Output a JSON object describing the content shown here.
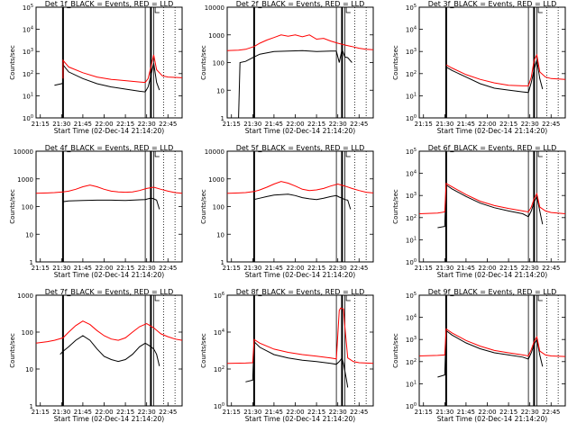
{
  "figure": {
    "colors": {
      "events": "#000000",
      "lld": "#ff0000"
    },
    "time_ticks": [
      "21:15",
      "21:30",
      "21:45",
      "22:00",
      "22:15",
      "22:30",
      "22:45"
    ],
    "time_range_min": [
      -3,
      100
    ],
    "ylabel": "Counts/sec",
    "xlabel": "Start Time (02-Dec-14 21:14:20)",
    "markers_min": {
      "thick": [
        16,
        78
      ],
      "thin": [
        74,
        80
      ],
      "dotted": [
        87,
        95
      ],
      "bracket": [
        81,
        84
      ]
    }
  },
  "chart_data": [
    {
      "type": "line",
      "panel": "det-1",
      "title": "Det 1f_BLACK = Events, RED = LLD",
      "ylog": true,
      "ylim": [
        1,
        100000
      ],
      "yticks": [
        {
          "v": 1,
          "label": "10^0"
        },
        {
          "v": 10,
          "label": "10^1"
        },
        {
          "v": 100,
          "label": "10^2"
        },
        {
          "v": 1000,
          "label": "10^3"
        },
        {
          "v": 10000,
          "label": "10^4"
        },
        {
          "v": 100000,
          "label": "10^5"
        }
      ],
      "series": [
        {
          "name": "Events",
          "x": [
            10,
            15,
            16,
            16,
            20,
            30,
            40,
            50,
            60,
            70,
            74,
            76,
            78,
            80,
            82,
            84
          ],
          "y": [
            30,
            35,
            38,
            250,
            120,
            60,
            35,
            25,
            20,
            16,
            15,
            25,
            80,
            300,
            40,
            18
          ]
        },
        {
          "name": "LLD",
          "x": [
            16,
            16,
            20,
            30,
            40,
            50,
            60,
            70,
            74,
            76,
            78,
            80,
            82,
            86,
            90,
            100
          ],
          "y": [
            60,
            400,
            200,
            110,
            70,
            55,
            48,
            42,
            40,
            60,
            200,
            700,
            150,
            80,
            70,
            65
          ]
        }
      ]
    },
    {
      "type": "line",
      "panel": "det-2",
      "title": "Det 2f_BLACK = Events, RED = LLD",
      "ylog": true,
      "ylim": [
        1,
        10000
      ],
      "yticks": [
        {
          "v": 1,
          "label": "1"
        },
        {
          "v": 10,
          "label": "10"
        },
        {
          "v": 100,
          "label": "100"
        },
        {
          "v": 1000,
          "label": "1000"
        },
        {
          "v": 10000,
          "label": "10000"
        }
      ],
      "series": [
        {
          "name": "Events",
          "x": [
            3,
            5,
            6,
            10,
            15,
            20,
            30,
            40,
            50,
            60,
            70,
            74,
            76,
            78,
            80,
            82,
            85
          ],
          "y": [
            1,
            1,
            100,
            110,
            150,
            200,
            250,
            260,
            270,
            250,
            260,
            260,
            100,
            300,
            160,
            150,
            100
          ]
        },
        {
          "name": "LLD",
          "x": [
            -3,
            5,
            10,
            16,
            20,
            25,
            30,
            35,
            40,
            45,
            50,
            55,
            60,
            65,
            70,
            75,
            80,
            85,
            90,
            95,
            100
          ],
          "y": [
            270,
            280,
            300,
            380,
            500,
            650,
            800,
            1000,
            900,
            1000,
            850,
            1000,
            700,
            750,
            600,
            500,
            430,
            380,
            330,
            300,
            290
          ]
        }
      ]
    },
    {
      "type": "line",
      "panel": "det-3",
      "title": "Det 3f_BLACK = Events, RED = LLD",
      "ylog": true,
      "ylim": [
        1,
        100000
      ],
      "yticks": [
        {
          "v": 1,
          "label": "10^0"
        },
        {
          "v": 10,
          "label": "10^1"
        },
        {
          "v": 100,
          "label": "10^2"
        },
        {
          "v": 1000,
          "label": "10^3"
        },
        {
          "v": 10000,
          "label": "10^4"
        },
        {
          "v": 100000,
          "label": "10^5"
        }
      ],
      "series": [
        {
          "name": "Events",
          "x": [
            16,
            20,
            30,
            40,
            50,
            60,
            70,
            74,
            76,
            78,
            80,
            82,
            84
          ],
          "y": [
            200,
            140,
            70,
            35,
            22,
            18,
            15,
            14,
            40,
            150,
            400,
            60,
            20
          ]
        },
        {
          "name": "LLD",
          "x": [
            16,
            20,
            30,
            40,
            50,
            60,
            70,
            74,
            76,
            78,
            80,
            82,
            86,
            90,
            100
          ],
          "y": [
            250,
            180,
            90,
            55,
            38,
            30,
            28,
            28,
            70,
            400,
            700,
            120,
            70,
            60,
            55
          ]
        }
      ]
    },
    {
      "type": "line",
      "panel": "det-4",
      "title": "Det 4f_BLACK = Events, RED = LLD",
      "ylog": true,
      "ylim": [
        1,
        10000
      ],
      "yticks": [
        {
          "v": 1,
          "label": "1"
        },
        {
          "v": 10,
          "label": "10"
        },
        {
          "v": 100,
          "label": "100"
        },
        {
          "v": 1000,
          "label": "1000"
        },
        {
          "v": 10000,
          "label": "10000"
        }
      ],
      "series": [
        {
          "name": "Events",
          "x": [
            15,
            16,
            16,
            20,
            30,
            40,
            50,
            60,
            70,
            74,
            76,
            78,
            80,
            82,
            84
          ],
          "y": [
            1,
            1,
            150,
            160,
            165,
            170,
            170,
            165,
            175,
            180,
            190,
            200,
            190,
            170,
            80
          ]
        },
        {
          "name": "LLD",
          "x": [
            -3,
            5,
            10,
            16,
            20,
            25,
            30,
            35,
            40,
            45,
            50,
            55,
            60,
            65,
            70,
            75,
            80,
            85,
            90,
            95,
            100
          ],
          "y": [
            300,
            310,
            320,
            340,
            360,
            420,
            520,
            600,
            520,
            420,
            360,
            340,
            330,
            340,
            380,
            450,
            500,
            420,
            360,
            320,
            300
          ]
        }
      ]
    },
    {
      "type": "line",
      "panel": "det-5",
      "title": "Det 5f_BLACK = Events, RED = LLD",
      "ylog": true,
      "ylim": [
        1,
        10000
      ],
      "yticks": [
        {
          "v": 1,
          "label": "1"
        },
        {
          "v": 10,
          "label": "10"
        },
        {
          "v": 100,
          "label": "100"
        },
        {
          "v": 1000,
          "label": "1000"
        },
        {
          "v": 10000,
          "label": "10000"
        }
      ],
      "series": [
        {
          "name": "Events",
          "x": [
            15,
            16,
            16,
            20,
            25,
            30,
            35,
            40,
            45,
            50,
            55,
            60,
            65,
            70,
            74,
            76,
            78,
            80,
            82,
            84
          ],
          "y": [
            1,
            1,
            180,
            200,
            230,
            260,
            270,
            280,
            250,
            210,
            190,
            180,
            200,
            230,
            250,
            220,
            200,
            180,
            170,
            80
          ]
        },
        {
          "name": "LLD",
          "x": [
            -3,
            5,
            10,
            16,
            20,
            25,
            30,
            35,
            40,
            45,
            50,
            55,
            60,
            65,
            70,
            75,
            80,
            85,
            90,
            95,
            100
          ],
          "y": [
            300,
            310,
            320,
            350,
            400,
            500,
            650,
            800,
            700,
            550,
            420,
            380,
            400,
            450,
            550,
            650,
            550,
            450,
            380,
            330,
            310
          ]
        }
      ]
    },
    {
      "type": "line",
      "panel": "det-6",
      "title": "Det 6f_BLACK = Events, RED = LLD",
      "ylog": true,
      "ylim": [
        1,
        100000
      ],
      "yticks": [
        {
          "v": 1,
          "label": "10^0"
        },
        {
          "v": 10,
          "label": "10^1"
        },
        {
          "v": 100,
          "label": "10^2"
        },
        {
          "v": 1000,
          "label": "10^3"
        },
        {
          "v": 10000,
          "label": "10^4"
        },
        {
          "v": 100000,
          "label": "10^5"
        }
      ],
      "series": [
        {
          "name": "Events",
          "x": [
            10,
            15,
            16,
            20,
            30,
            40,
            50,
            60,
            70,
            74,
            76,
            78,
            80,
            82,
            84
          ],
          "y": [
            35,
            40,
            3000,
            2000,
            900,
            450,
            280,
            200,
            150,
            110,
            200,
            500,
            900,
            200,
            50
          ]
        },
        {
          "name": "LLD",
          "x": [
            -3,
            10,
            15,
            16,
            20,
            30,
            40,
            50,
            60,
            70,
            74,
            76,
            78,
            80,
            82,
            86,
            90,
            100
          ],
          "y": [
            150,
            160,
            180,
            3500,
            2500,
            1100,
            550,
            350,
            260,
            200,
            180,
            300,
            700,
            1200,
            300,
            200,
            170,
            150
          ]
        }
      ]
    },
    {
      "type": "line",
      "panel": "det-7",
      "title": "Det 7f_BLACK = Events, RED = LLD",
      "ylog": true,
      "ylim": [
        1,
        1000
      ],
      "yticks": [
        {
          "v": 1,
          "label": "1"
        },
        {
          "v": 10,
          "label": "10"
        },
        {
          "v": 100,
          "label": "100"
        },
        {
          "v": 1000,
          "label": "1000"
        }
      ],
      "series": [
        {
          "name": "Events",
          "x": [
            14,
            16,
            20,
            25,
            30,
            35,
            40,
            45,
            50,
            55,
            60,
            65,
            70,
            74,
            76,
            78,
            80,
            82,
            84
          ],
          "y": [
            25,
            30,
            40,
            60,
            80,
            60,
            35,
            22,
            18,
            16,
            18,
            25,
            40,
            50,
            45,
            40,
            35,
            25,
            12
          ]
        },
        {
          "name": "LLD",
          "x": [
            -3,
            5,
            10,
            16,
            20,
            25,
            30,
            35,
            40,
            45,
            50,
            55,
            60,
            65,
            70,
            75,
            80,
            85,
            90,
            95,
            100
          ],
          "y": [
            50,
            55,
            60,
            70,
            100,
            150,
            200,
            160,
            110,
            80,
            65,
            60,
            70,
            100,
            140,
            170,
            130,
            90,
            75,
            65,
            60
          ]
        }
      ]
    },
    {
      "type": "line",
      "panel": "det-8",
      "title": "Det 8f_BLACK = Events, RED = LLD",
      "ylog": true,
      "ylim": [
        1,
        1000000
      ],
      "yticks": [
        {
          "v": 1,
          "label": "10^0"
        },
        {
          "v": 100,
          "label": "10^2"
        },
        {
          "v": 10000,
          "label": "10^4"
        },
        {
          "v": 1000000,
          "label": "10^6"
        }
      ],
      "series": [
        {
          "name": "Events",
          "x": [
            10,
            15,
            16,
            20,
            30,
            40,
            50,
            60,
            70,
            74,
            76,
            78,
            79,
            80,
            81,
            82
          ],
          "y": [
            20,
            25,
            3000,
            1500,
            600,
            400,
            300,
            250,
            200,
            180,
            250,
            400,
            200,
            80,
            30,
            10
          ]
        },
        {
          "name": "LLD",
          "x": [
            -3,
            10,
            15,
            16,
            20,
            30,
            40,
            50,
            60,
            70,
            74,
            76,
            77,
            79,
            80,
            82,
            86,
            90,
            100
          ],
          "y": [
            200,
            210,
            220,
            4000,
            2500,
            1200,
            800,
            600,
            500,
            400,
            350,
            150000,
            200000,
            180000,
            20000,
            400,
            250,
            220,
            200
          ]
        }
      ]
    },
    {
      "type": "line",
      "panel": "det-9",
      "title": "Det 9f_BLACK = Events, RED = LLD",
      "ylog": true,
      "ylim": [
        1,
        100000
      ],
      "yticks": [
        {
          "v": 1,
          "label": "10^0"
        },
        {
          "v": 10,
          "label": "10^1"
        },
        {
          "v": 100,
          "label": "10^2"
        },
        {
          "v": 1000,
          "label": "10^3"
        },
        {
          "v": 10000,
          "label": "10^4"
        },
        {
          "v": 100000,
          "label": "10^5"
        }
      ],
      "series": [
        {
          "name": "Events",
          "x": [
            10,
            15,
            16,
            20,
            30,
            40,
            50,
            60,
            70,
            74,
            76,
            78,
            80,
            82,
            84
          ],
          "y": [
            20,
            25,
            2500,
            1600,
            700,
            380,
            250,
            200,
            160,
            130,
            250,
            600,
            1000,
            200,
            60
          ]
        },
        {
          "name": "LLD",
          "x": [
            -3,
            10,
            15,
            16,
            20,
            30,
            40,
            50,
            60,
            70,
            74,
            76,
            78,
            80,
            82,
            86,
            90,
            100
          ],
          "y": [
            180,
            190,
            200,
            3000,
            2000,
            900,
            500,
            320,
            250,
            200,
            180,
            350,
            800,
            1300,
            300,
            200,
            180,
            170
          ]
        }
      ]
    }
  ]
}
